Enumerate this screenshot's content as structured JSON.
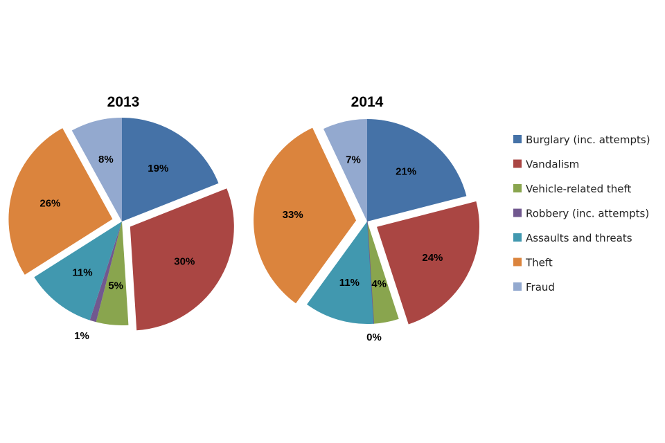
{
  "chart_data": [
    {
      "type": "pie",
      "title": "2013",
      "categories": [
        "Burglary (inc. attempts)",
        "Vandalism",
        "Vehicle-related theft",
        "Robbery (inc. attempts)",
        "Assaults and threats",
        "Theft",
        "Fraud"
      ],
      "values": [
        19,
        30,
        5,
        1,
        11,
        26,
        8
      ],
      "labels": [
        "19%",
        "30%",
        "5%",
        "1%",
        "11%",
        "26%",
        "8%"
      ],
      "exploded": [
        "Vandalism",
        "Theft"
      ],
      "legend": "right"
    },
    {
      "type": "pie",
      "title": "2014",
      "categories": [
        "Burglary (inc. attempts)",
        "Vandalism",
        "Vehicle-related theft",
        "Robbery (inc. attempts)",
        "Assaults and threats",
        "Theft",
        "Fraud"
      ],
      "values": [
        21,
        24,
        4,
        0,
        11,
        33,
        7
      ],
      "labels": [
        "21%",
        "24%",
        "4%",
        "0%",
        "11%",
        "33%",
        "7%"
      ],
      "exploded": [
        "Vandalism",
        "Theft"
      ],
      "legend": "right"
    }
  ],
  "legend": [
    {
      "label": "Burglary (inc. attempts)",
      "color": "#4572A7"
    },
    {
      "label": "Vandalism",
      "color": "#AA4643"
    },
    {
      "label": "Vehicle-related theft",
      "color": "#89A54E"
    },
    {
      "label": "Robbery (inc. attempts)",
      "color": "#71588F"
    },
    {
      "label": "Assaults and threats",
      "color": "#4198AF"
    },
    {
      "label": "Theft",
      "color": "#DB843D"
    },
    {
      "label": "Fraud",
      "color": "#93A9CF"
    }
  ]
}
